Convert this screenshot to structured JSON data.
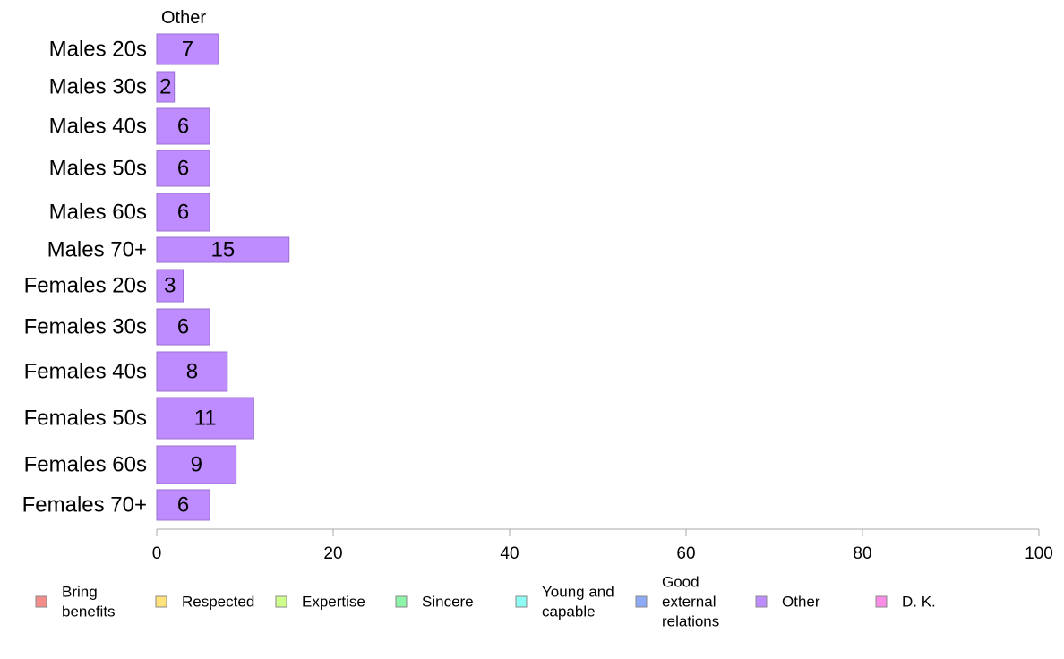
{
  "chart_data": {
    "type": "bar",
    "orientation": "horizontal",
    "title": "Other",
    "categories": [
      "Males 20s",
      "Males 30s",
      "Males 40s",
      "Males 50s",
      "Males 60s",
      "Males 70+",
      "Females 20s",
      "Females 30s",
      "Females 40s",
      "Females 50s",
      "Females 60s",
      "Females 70+"
    ],
    "series": [
      {
        "name": "Other",
        "color": "#bf8cff",
        "values": [
          7,
          2,
          6,
          6,
          6,
          15,
          3,
          6,
          8,
          11,
          9,
          6
        ],
        "value_labels": [
          "7",
          "2",
          "6",
          "6",
          "6",
          "15",
          "3",
          "6",
          "8",
          "11",
          "9",
          "6"
        ]
      }
    ],
    "xlim": [
      0,
      100
    ],
    "xticks": [
      0,
      20,
      40,
      60,
      80,
      100
    ],
    "xtick_labels": [
      "0",
      "20",
      "40",
      "60",
      "80",
      "100"
    ],
    "legend": {
      "position": "bottom",
      "entries": [
        {
          "lines": [
            "Bring",
            "benefits"
          ],
          "color": "#f58c8c"
        },
        {
          "lines": [
            "Respected"
          ],
          "color": "#ffe27a"
        },
        {
          "lines": [
            "Expertise"
          ],
          "color": "#cdff8a"
        },
        {
          "lines": [
            "Sincere"
          ],
          "color": "#8cf5a8"
        },
        {
          "lines": [
            "Young and",
            "capable"
          ],
          "color": "#8cfcf5"
        },
        {
          "lines": [
            "Good",
            "external",
            "relations"
          ],
          "color": "#8caaf5"
        },
        {
          "lines": [
            "Other"
          ],
          "color": "#bf8cff"
        },
        {
          "lines": [
            "D. K."
          ],
          "color": "#fa8ce6"
        }
      ]
    }
  }
}
